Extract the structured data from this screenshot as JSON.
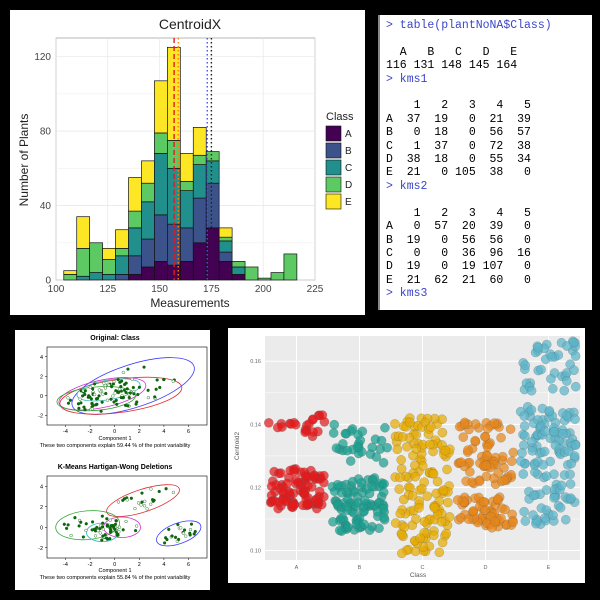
{
  "histogram": {
    "chart_data": {
      "type": "bar",
      "title": "CentroidX",
      "xlabel": "Measurements",
      "ylabel": "Number of Plants",
      "xlim": [
        100,
        225
      ],
      "ylim": [
        0,
        130
      ],
      "xticks": [
        "100",
        "125",
        "150",
        "175",
        "200",
        "225"
      ],
      "yticks": [
        "0",
        "40",
        "80",
        "120"
      ],
      "bin_width": 6.25,
      "bin_starts": [
        103.75,
        110,
        116.25,
        122.5,
        128.75,
        135,
        141.25,
        147.5,
        153.75,
        160,
        166.25,
        172.5,
        178.75,
        185,
        191.25,
        197.5,
        203.75,
        210,
        216.25
      ],
      "series": [
        {
          "name": "A",
          "color": "#440154",
          "values": [
            0,
            0,
            0,
            0,
            0,
            3,
            7,
            10,
            8,
            10,
            20,
            28,
            10,
            3,
            0,
            0,
            0,
            0,
            0
          ]
        },
        {
          "name": "B",
          "color": "#3b528b",
          "values": [
            0,
            0,
            0,
            0,
            3,
            10,
            15,
            25,
            22,
            18,
            24,
            24,
            5,
            0,
            0,
            0,
            0,
            0,
            0
          ]
        },
        {
          "name": "C",
          "color": "#21908d",
          "values": [
            0,
            2,
            4,
            3,
            10,
            15,
            20,
            33,
            30,
            20,
            18,
            12,
            6,
            4,
            0,
            0,
            0,
            0,
            0
          ]
        },
        {
          "name": "D",
          "color": "#5dc963",
          "values": [
            3,
            15,
            16,
            8,
            4,
            9,
            10,
            11,
            15,
            5,
            5,
            5,
            2,
            3,
            7,
            1,
            4,
            14,
            0
          ]
        },
        {
          "name": "E",
          "color": "#fde725",
          "values": [
            2,
            17,
            0,
            6,
            10,
            18,
            12,
            28,
            50,
            15,
            15,
            0,
            5,
            0,
            0,
            0,
            0,
            0,
            0
          ]
        }
      ],
      "vlines": [
        {
          "x": 157,
          "color": "#e41a1c",
          "style": "dashed"
        },
        {
          "x": 159,
          "color": "#ff7f00",
          "style": "dotted"
        },
        {
          "x": 173,
          "color": "#4b4bff",
          "style": "dotted"
        },
        {
          "x": 175,
          "color": "#222222",
          "style": "dotted"
        }
      ],
      "legend": {
        "title": "Class",
        "placement": "right",
        "entries": [
          "A",
          "B",
          "C",
          "D",
          "E"
        ]
      },
      "grid": true
    }
  },
  "console": {
    "lines": [
      {
        "prompt": true,
        "text": "> table(plantNoNA$Class)"
      },
      {
        "prompt": false,
        "text": ""
      },
      {
        "prompt": false,
        "text": "  A   B   C   D   E"
      },
      {
        "prompt": false,
        "text": "116 131 148 145 164"
      },
      {
        "prompt": true,
        "text": "> kms1"
      },
      {
        "prompt": false,
        "text": ""
      },
      {
        "prompt": false,
        "text": "    1   2   3   4   5"
      },
      {
        "prompt": false,
        "text": "A  37  19   0  21  39"
      },
      {
        "prompt": false,
        "text": "B   0  18   0  56  57"
      },
      {
        "prompt": false,
        "text": "C   1  37   0  72  38"
      },
      {
        "prompt": false,
        "text": "D  38  18   0  55  34"
      },
      {
        "prompt": false,
        "text": "E  21   0 105  38   0"
      },
      {
        "prompt": true,
        "text": "> kms2"
      },
      {
        "prompt": false,
        "text": ""
      },
      {
        "prompt": false,
        "text": "    1   2   3   4   5"
      },
      {
        "prompt": false,
        "text": "A   0  57  20  39   0"
      },
      {
        "prompt": false,
        "text": "B  19   0  56  56   0"
      },
      {
        "prompt": false,
        "text": "C   0   0  36  96  16"
      },
      {
        "prompt": false,
        "text": "D  19   0  19 107   0"
      },
      {
        "prompt": false,
        "text": "E  21  62  21  60   0"
      },
      {
        "prompt": true,
        "text": "> kms3"
      }
    ]
  },
  "clusters": {
    "plots": [
      {
        "title": "Original: Class",
        "xlabel": "Component 1",
        "caption": "These two components explain 59.44 % of the point variability",
        "xticks": [
          "-4",
          "-2",
          "0",
          "2",
          "4",
          "6"
        ],
        "yticks": [
          "-2",
          "0",
          "2",
          "4"
        ],
        "ellipses": [
          {
            "color": "#3c3cff",
            "cx": 1.5,
            "cy": 1.0,
            "rx": 5.2,
            "ry": 2.2,
            "angle": -18
          },
          {
            "color": "#e03030",
            "cx": 0.5,
            "cy": 0.0,
            "rx": 5.0,
            "ry": 1.7,
            "angle": -8
          },
          {
            "color": "#cc33cc",
            "cx": -1.0,
            "cy": 0.2,
            "rx": 3.6,
            "ry": 1.4,
            "angle": -12
          },
          {
            "color": "#2aa52a",
            "cx": -1.5,
            "cy": -0.3,
            "rx": 3.2,
            "ry": 1.2,
            "angle": -5
          },
          {
            "color": "#30b8b8",
            "cx": -0.5,
            "cy": 0.6,
            "rx": 2.6,
            "ry": 1.0,
            "angle": -10
          }
        ]
      },
      {
        "title": "K-Means Hartigan-Wong Deletions",
        "xlabel": "Component 1",
        "caption": "These two components explain 55.84 % of the point variability",
        "xticks": [
          "-4",
          "-2",
          "0",
          "2",
          "4",
          "6"
        ],
        "yticks": [
          "-2",
          "0",
          "2",
          "4"
        ],
        "ellipses": [
          {
            "color": "#e03030",
            "cx": 2.3,
            "cy": 2.6,
            "rx": 3.1,
            "ry": 1.1,
            "angle": -18
          },
          {
            "color": "#2aa52a",
            "cx": -2.2,
            "cy": 0.2,
            "rx": 2.6,
            "ry": 1.4,
            "angle": -5
          },
          {
            "color": "#3c3cff",
            "cx": 5.2,
            "cy": -0.6,
            "rx": 1.9,
            "ry": 1.0,
            "angle": -20
          },
          {
            "color": "#cc33cc",
            "cx": 0.6,
            "cy": 0.0,
            "rx": 1.5,
            "ry": 1.0,
            "angle": 0
          },
          {
            "color": "#30b8b8",
            "cx": -1.0,
            "cy": -0.5,
            "rx": 1.3,
            "ry": 0.9,
            "angle": 0
          }
        ]
      }
    ]
  },
  "jitter": {
    "chart_data": {
      "type": "scatter",
      "xlabel": "Class",
      "ylabel": "Centroid2",
      "categories": [
        "A",
        "B",
        "C",
        "D",
        "E"
      ],
      "yticks": [
        "0.10",
        "0.12",
        "0.14",
        "0.16"
      ],
      "ylim": [
        0.097,
        0.168
      ],
      "grid": true,
      "groups": [
        {
          "category": "A",
          "color": "#e31a1c",
          "ranges": [
            [
              0.113,
              0.126,
              90
            ],
            [
              0.136,
              0.143,
              22
            ]
          ]
        },
        {
          "category": "B",
          "color": "#1a9e8f",
          "ranges": [
            [
              0.106,
              0.123,
              95
            ],
            [
              0.127,
              0.14,
              30
            ]
          ]
        },
        {
          "category": "C",
          "color": "#e6ab02",
          "ranges": [
            [
              0.099,
              0.142,
              140
            ]
          ]
        },
        {
          "category": "D",
          "color": "#e6861a",
          "ranges": [
            [
              0.107,
              0.117,
              60
            ],
            [
              0.121,
              0.141,
              75
            ]
          ]
        },
        {
          "category": "E",
          "color": "#5ab4c9",
          "ranges": [
            [
              0.108,
              0.125,
              45
            ],
            [
              0.127,
              0.146,
              80
            ],
            [
              0.15,
              0.167,
              40
            ]
          ]
        }
      ]
    }
  }
}
